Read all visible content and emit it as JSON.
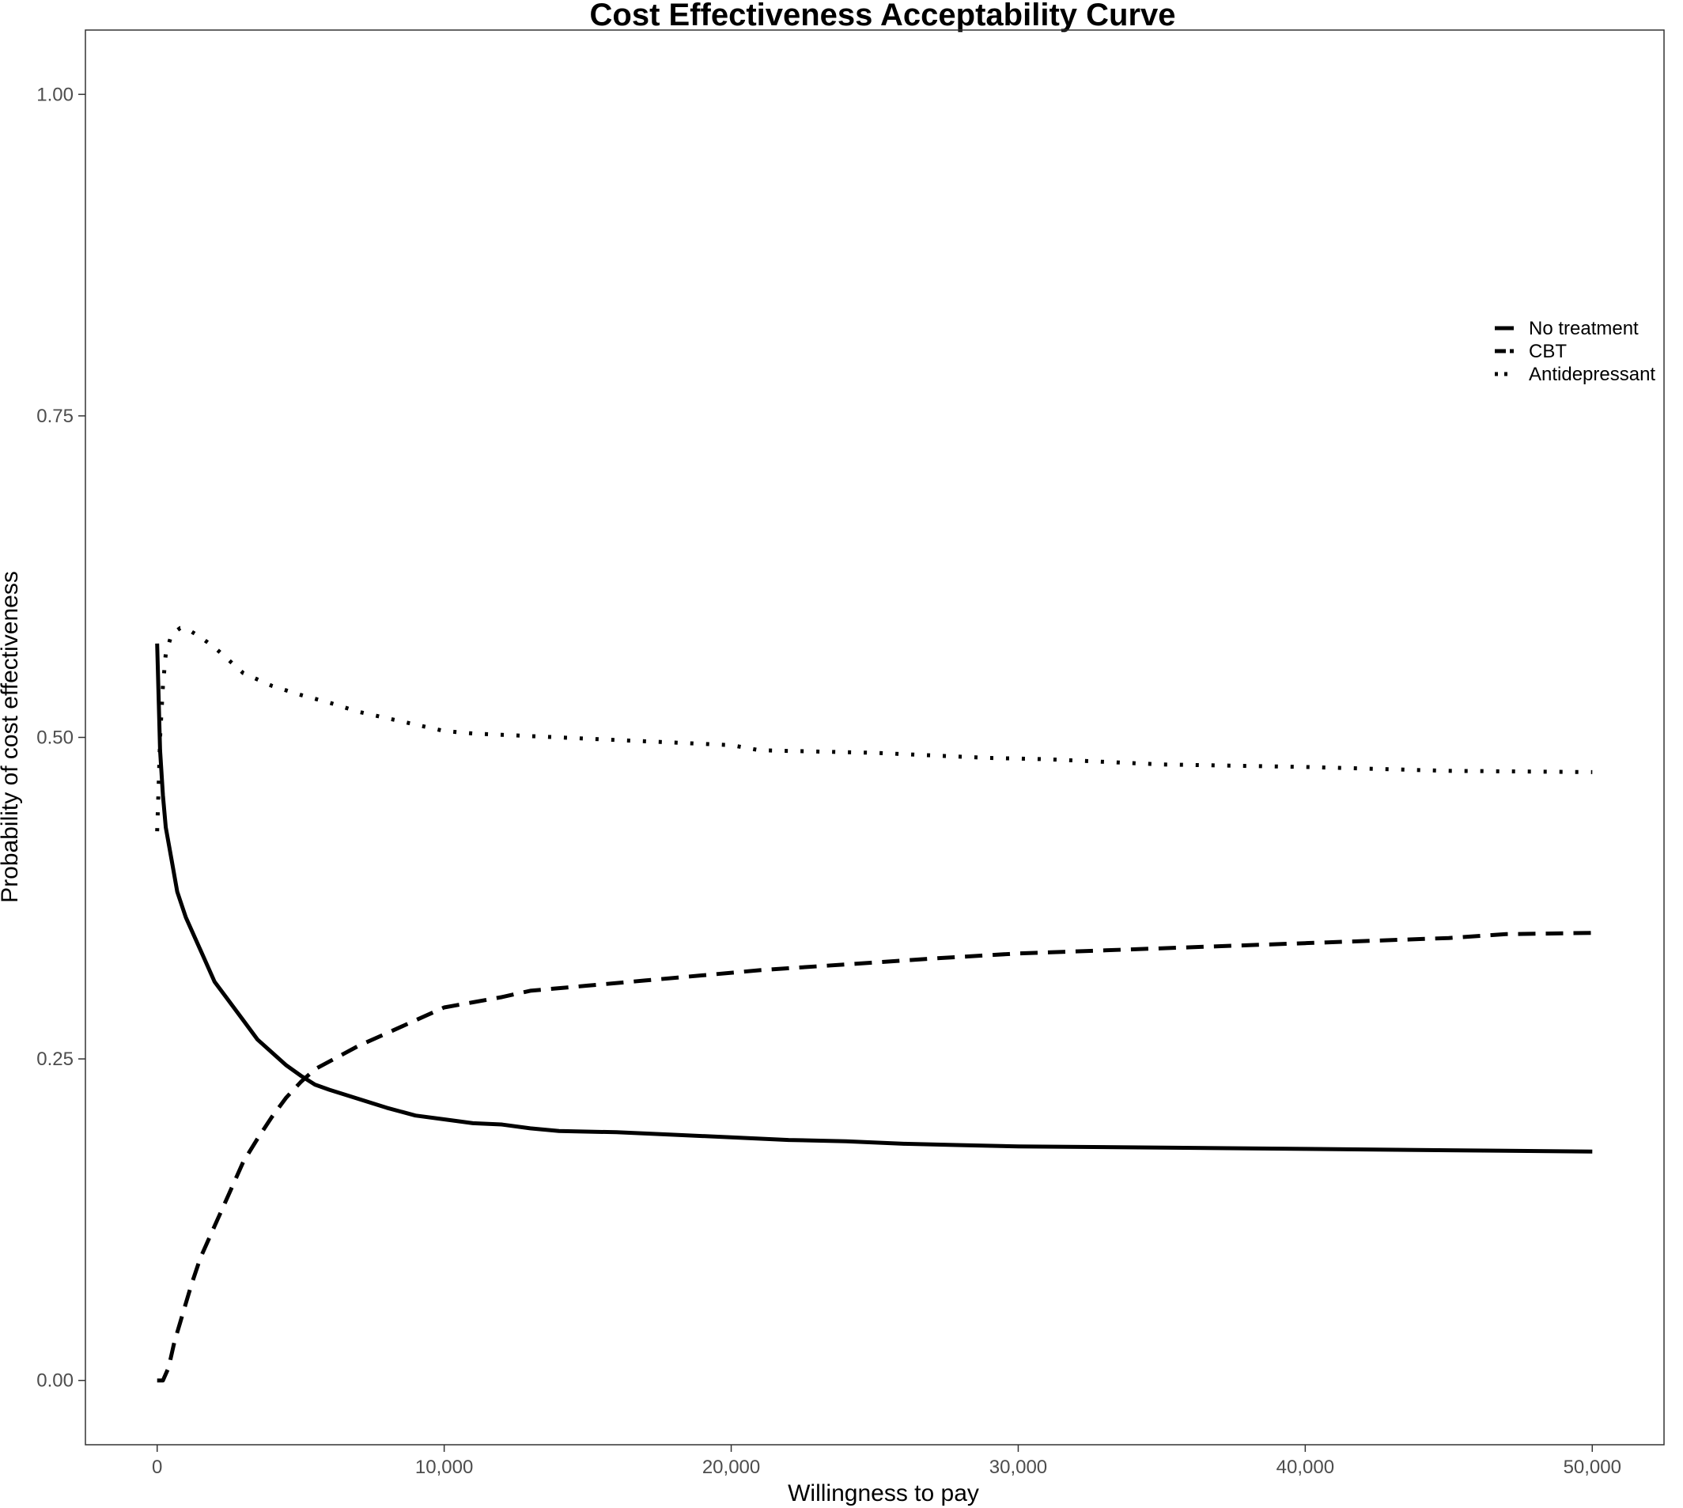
{
  "chart_data": {
    "type": "line",
    "title": "Cost Effectiveness Acceptability Curve",
    "xlabel": "Willingness to pay",
    "ylabel": "Probability of cost effectiveness",
    "xlim": [
      -2500,
      52500
    ],
    "ylim": [
      -0.05,
      1.05
    ],
    "x_ticks": [
      0,
      10000,
      20000,
      30000,
      40000,
      50000
    ],
    "x_tick_labels": [
      "0",
      "10,000",
      "20,000",
      "30,000",
      "40,000",
      "50,000"
    ],
    "y_ticks": [
      0,
      0.25,
      0.5,
      0.75,
      1.0
    ],
    "y_tick_labels": [
      "0.00",
      "0.25",
      "0.50",
      "0.75",
      "1.00"
    ],
    "grid": false,
    "legend_position": "right",
    "series_color": "#000000",
    "series": [
      {
        "name": "No treatment",
        "linestyle": "solid",
        "x": [
          0,
          100,
          200,
          300,
          500,
          700,
          1000,
          1500,
          2000,
          2500,
          3000,
          3500,
          4000,
          4500,
          5000,
          5500,
          6000,
          7000,
          8000,
          9000,
          10000,
          11000,
          12000,
          13000,
          14000,
          16000,
          18000,
          20000,
          22000,
          24000,
          26000,
          28000,
          30000,
          35000,
          40000,
          45000,
          50000
        ],
        "y": [
          0.573,
          0.49,
          0.455,
          0.43,
          0.405,
          0.38,
          0.36,
          0.335,
          0.31,
          0.295,
          0.28,
          0.265,
          0.255,
          0.245,
          0.237,
          0.23,
          0.226,
          0.219,
          0.212,
          0.206,
          0.203,
          0.2,
          0.199,
          0.196,
          0.194,
          0.193,
          0.191,
          0.189,
          0.187,
          0.186,
          0.184,
          0.183,
          0.182,
          0.181,
          0.18,
          0.179,
          0.178
        ]
      },
      {
        "name": "CBT",
        "linestyle": "dashed",
        "x": [
          0,
          200,
          400,
          600,
          800,
          1000,
          1200,
          1500,
          2000,
          2500,
          3000,
          3500,
          4000,
          4500,
          5000,
          5500,
          6000,
          7000,
          8000,
          9000,
          10000,
          11000,
          12000,
          13000,
          15000,
          17000,
          19000,
          21000,
          23000,
          25000,
          27000,
          30000,
          35000,
          40000,
          45000,
          47000,
          50000
        ],
        "y": [
          0.0,
          0.0,
          0.01,
          0.03,
          0.045,
          0.06,
          0.075,
          0.095,
          0.12,
          0.145,
          0.17,
          0.188,
          0.205,
          0.22,
          0.232,
          0.242,
          0.248,
          0.26,
          0.27,
          0.28,
          0.29,
          0.294,
          0.298,
          0.303,
          0.307,
          0.311,
          0.315,
          0.319,
          0.322,
          0.325,
          0.328,
          0.332,
          0.336,
          0.34,
          0.344,
          0.347,
          0.348
        ]
      },
      {
        "name": "Antidepressant",
        "linestyle": "dotted",
        "x": [
          0,
          50,
          100,
          200,
          300,
          500,
          800,
          1000,
          1500,
          2000,
          3000,
          4000,
          5000,
          6000,
          7000,
          8000,
          9000,
          10000,
          11000,
          12000,
          14000,
          16000,
          18000,
          20000,
          21000,
          23000,
          25000,
          27000,
          29000,
          31000,
          33000,
          35000,
          40000,
          45000,
          50000
        ],
        "y": [
          0.427,
          0.46,
          0.5,
          0.54,
          0.565,
          0.58,
          0.585,
          0.585,
          0.578,
          0.57,
          0.55,
          0.54,
          0.533,
          0.527,
          0.52,
          0.515,
          0.51,
          0.505,
          0.503,
          0.502,
          0.5,
          0.498,
          0.496,
          0.494,
          0.49,
          0.489,
          0.488,
          0.486,
          0.484,
          0.483,
          0.481,
          0.479,
          0.477,
          0.474,
          0.473
        ]
      }
    ]
  }
}
